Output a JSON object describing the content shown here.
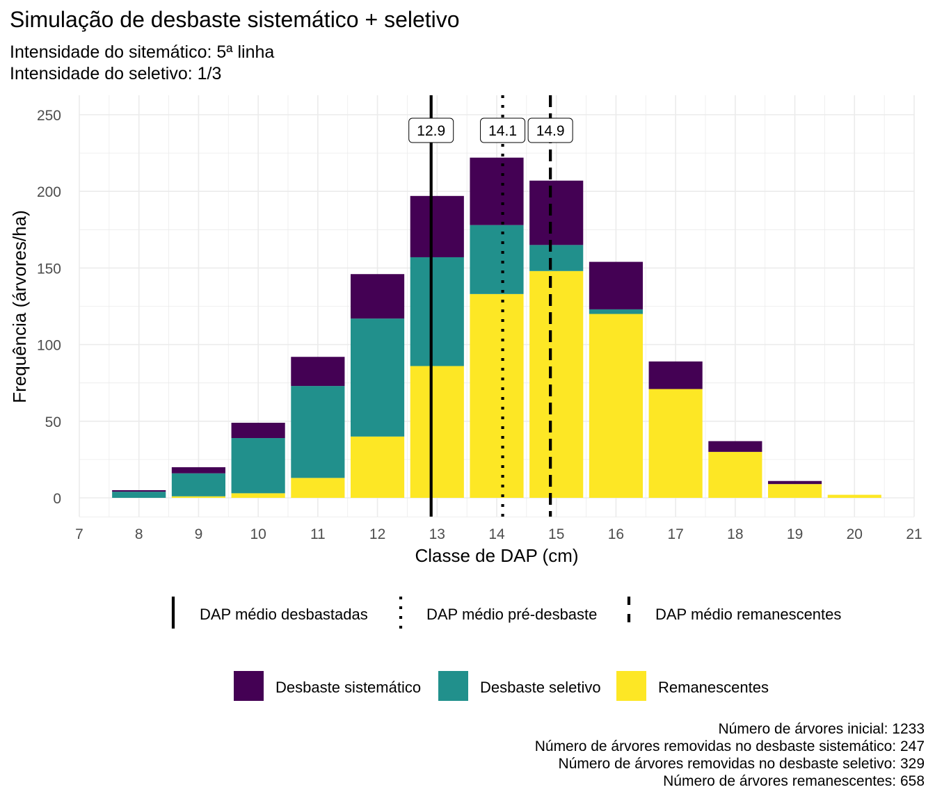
{
  "title": "Simulação de desbaste sistemático + seletivo",
  "subtitle": [
    "Intensidade do sitemático: 5ª linha",
    "Intensidade do seletivo: 1/3"
  ],
  "caption": [
    "Número de árvores inicial: 1233",
    "Número de árvores removidas no desbaste sistemático: 247",
    "Número de árvores removidas no desbaste seletivo: 329",
    "Número de árvores remanescentes: 658"
  ],
  "colors": {
    "sistematico": "#440154",
    "seletivo": "#21908C",
    "remanescentes": "#FDE725",
    "grid": "#EBEBEB"
  },
  "chart_data": {
    "type": "bar",
    "stacked": true,
    "xlabel": "Classe de DAP (cm)",
    "ylabel": "Frequência (árvores/ha)",
    "xlim": [
      7,
      21
    ],
    "ylim": [
      0,
      250
    ],
    "x_ticks": [
      7,
      8,
      9,
      10,
      11,
      12,
      13,
      14,
      15,
      16,
      17,
      18,
      19,
      20,
      21
    ],
    "y_ticks": [
      0,
      50,
      100,
      150,
      200,
      250
    ],
    "categories": [
      8,
      9,
      10,
      11,
      12,
      13,
      14,
      15,
      16,
      17,
      18,
      19,
      20
    ],
    "series": [
      {
        "name": "Remanescentes",
        "color": "#FDE725",
        "values": [
          0,
          1,
          3,
          13,
          40,
          86,
          133,
          148,
          120,
          71,
          30,
          9,
          2
        ]
      },
      {
        "name": "Desbaste seletivo",
        "color": "#21908C",
        "values": [
          4,
          15,
          36,
          60,
          77,
          71,
          45,
          17,
          3,
          0,
          0,
          0,
          0
        ]
      },
      {
        "name": "Desbaste sistemático",
        "color": "#440154",
        "values": [
          1,
          4,
          10,
          19,
          29,
          40,
          44,
          42,
          31,
          18,
          7,
          2,
          0
        ]
      }
    ],
    "vlines": [
      {
        "name": "DAP médio desbastadas",
        "x": 12.9,
        "label": "12.9",
        "style": "solid"
      },
      {
        "name": "DAP médio pré-desbaste",
        "x": 14.1,
        "label": "14.1",
        "style": "dotted"
      },
      {
        "name": "DAP médio remanescentes",
        "x": 14.9,
        "label": "14.9",
        "style": "dashed"
      }
    ],
    "legend_lines": [
      "DAP médio desbastadas",
      "DAP médio pré-desbaste",
      "DAP médio remanescentes"
    ],
    "legend_fill": [
      "Desbaste sistemático",
      "Desbaste seletivo",
      "Remanescentes"
    ],
    "legend_position": "bottom",
    "grid": true
  }
}
